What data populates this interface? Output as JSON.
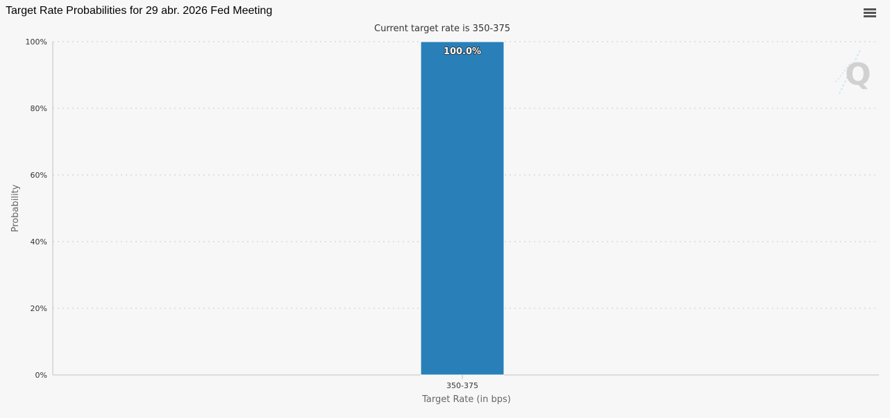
{
  "header": {
    "title": "Target Rate Probabilities for 29 abr. 2026 Fed Meeting",
    "menu_icon": "hamburger-menu-icon"
  },
  "watermark": {
    "text": "Q",
    "icon": "q-logo-icon"
  },
  "colors": {
    "bar": "#2980b9",
    "background": "#f7f7f7",
    "gridline": "#d8d8d8",
    "axis": "#c0c0c0"
  },
  "chart_data": {
    "type": "bar",
    "subtitle": "Current target rate is 350-375",
    "xlabel": "Target Rate (in bps)",
    "ylabel": "Probability",
    "categories": [
      "350-375"
    ],
    "values": [
      100.0
    ],
    "data_labels": [
      "100.0%"
    ],
    "ylim": [
      0,
      100
    ],
    "yticks": [
      0,
      20,
      40,
      60,
      80,
      100
    ],
    "ytick_labels": [
      "0%",
      "20%",
      "40%",
      "60%",
      "80%",
      "100%"
    ],
    "grid": true,
    "legend": "none"
  }
}
